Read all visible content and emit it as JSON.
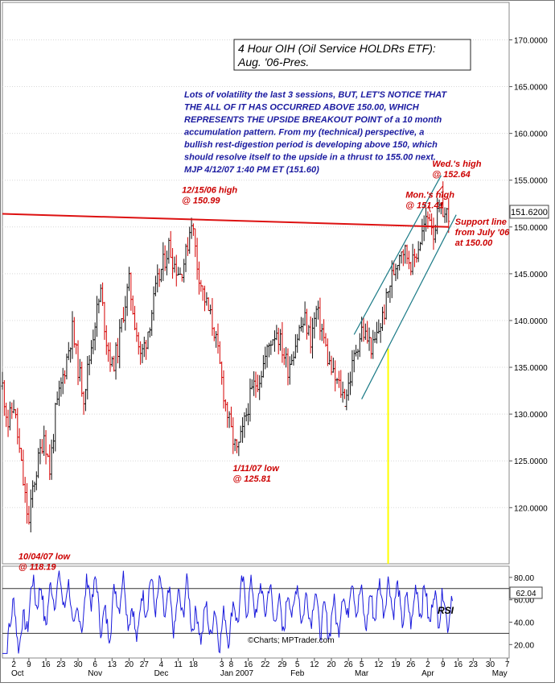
{
  "chart_data": [
    {
      "type": "candlestick",
      "title_line1": "4 Hour OIH (Oil Service HOLDRs ETF):",
      "title_line2": "Aug. '06-Pres.",
      "commentary": [
        "Lots of volatility the last 3 sessions, BUT, LET'S NOTICE THAT",
        "THE ALL OF IT HAS OCCURRED ABOVE 150.00, WHICH",
        "REPRESENTS THE UPSIDE BREAKOUT POINT of a 10 month",
        "accumulation pattern. From my (technical) perspective, a",
        "bullish rest-digestion period is developing above 150, which",
        "should resolve itself to the upside in a thrust to 155.00 next.",
        "MJP  4/12/07  1:40 PM ET (151.60)"
      ],
      "last_price_label": "151.6200",
      "last_price": 151.62,
      "ylim": [
        114,
        174
      ],
      "y_ticks": [
        {
          "value": 120,
          "label": "120.0000"
        },
        {
          "value": 125,
          "label": "125.0000"
        },
        {
          "value": 130,
          "label": "130.0000"
        },
        {
          "value": 135,
          "label": "135.0000"
        },
        {
          "value": 140,
          "label": "140.0000"
        },
        {
          "value": 145,
          "label": "145.0000"
        },
        {
          "value": 150,
          "label": "150.0000"
        },
        {
          "value": 155,
          "label": "155.0000"
        },
        {
          "value": 160,
          "label": "160.0000"
        },
        {
          "value": 165,
          "label": "165.0000"
        },
        {
          "value": 170,
          "label": "170.0000"
        }
      ],
      "price_path": [
        [
          0,
          133
        ],
        [
          3,
          129
        ],
        [
          6,
          131
        ],
        [
          9,
          126
        ],
        [
          12,
          121
        ],
        [
          14,
          118.19
        ],
        [
          16,
          122
        ],
        [
          19,
          125
        ],
        [
          22,
          128
        ],
        [
          25,
          124
        ],
        [
          28,
          130
        ],
        [
          31,
          133
        ],
        [
          34,
          136
        ],
        [
          37,
          139
        ],
        [
          40,
          135
        ],
        [
          43,
          132
        ],
        [
          46,
          136
        ],
        [
          49,
          140
        ],
        [
          52,
          143
        ],
        [
          55,
          138
        ],
        [
          58,
          135
        ],
        [
          61,
          137
        ],
        [
          64,
          141
        ],
        [
          67,
          144
        ],
        [
          70,
          140
        ],
        [
          73,
          136
        ],
        [
          76,
          138
        ],
        [
          79,
          141
        ],
        [
          82,
          144
        ],
        [
          85,
          146
        ],
        [
          88,
          148
        ],
        [
          91,
          146
        ],
        [
          94,
          145
        ],
        [
          97,
          147
        ],
        [
          100,
          150.99
        ],
        [
          103,
          146
        ],
        [
          106,
          143
        ],
        [
          109,
          141
        ],
        [
          112,
          139
        ],
        [
          115,
          135
        ],
        [
          118,
          131
        ],
        [
          121,
          128
        ],
        [
          124,
          125.81
        ],
        [
          127,
          128
        ],
        [
          130,
          131
        ],
        [
          133,
          133
        ],
        [
          136,
          134
        ],
        [
          139,
          136
        ],
        [
          142,
          138
        ],
        [
          145,
          139
        ],
        [
          148,
          137
        ],
        [
          151,
          135
        ],
        [
          154,
          137
        ],
        [
          157,
          139
        ],
        [
          160,
          140
        ],
        [
          163,
          138
        ],
        [
          166,
          141
        ],
        [
          169,
          139
        ],
        [
          172,
          136
        ],
        [
          175,
          134
        ],
        [
          178,
          133
        ],
        [
          181,
          131.6
        ],
        [
          184,
          134
        ],
        [
          187,
          137
        ],
        [
          190,
          139
        ],
        [
          193,
          138
        ],
        [
          196,
          137
        ],
        [
          199,
          139
        ],
        [
          202,
          141
        ],
        [
          205,
          144
        ],
        [
          208,
          146
        ],
        [
          211,
          148
        ],
        [
          214,
          147
        ],
        [
          217,
          146
        ],
        [
          220,
          148
        ],
        [
          223,
          150
        ],
        [
          226,
          151.41
        ],
        [
          228,
          149.5
        ],
        [
          230,
          151
        ],
        [
          232,
          152.64
        ],
        [
          234,
          151.2
        ],
        [
          236,
          151.62
        ]
      ],
      "flat_line": {
        "x0": 0,
        "y0": 151.4,
        "x1": 236,
        "y1": 150.0,
        "color": "#dd1111"
      },
      "channel_upper": {
        "x0": 186,
        "y0": 138.5,
        "x1": 232,
        "y1": 155.5
      },
      "channel_lower": {
        "x0": 190,
        "y0": 131.6,
        "x1": 240,
        "y1": 151.3
      },
      "channel_color": "#1a7a86",
      "marker_x": 204,
      "marker_color": "#ffff00",
      "annotations": [
        {
          "lines": [
            "10/04/07 low",
            "@ 118.19"
          ],
          "x": 14,
          "y": 118.19
        },
        {
          "lines": [
            "12/15/06 high",
            "@ 150.99"
          ],
          "x": 100,
          "y": 150.99
        },
        {
          "lines": [
            "1/11/07 low",
            "@ 125.81"
          ],
          "x": 124,
          "y": 125.81
        },
        {
          "lines": [
            "Mon.'s high",
            "@ 151.41"
          ],
          "x": 226,
          "y": 151.41
        },
        {
          "lines": [
            "Wed.'s high",
            "@ 152.64"
          ],
          "x": 232,
          "y": 152.64
        },
        {
          "lines": [
            "Support line",
            "from July '06",
            "at 150.00"
          ],
          "x": 236,
          "y": 150.0
        }
      ],
      "annotation_color": "#cc0000",
      "commentary_color": "#1a1aa0"
    },
    {
      "type": "line",
      "series_label": "RSI",
      "last_value_label": "62.04",
      "ylim": [
        8,
        90
      ],
      "y_ticks": [
        {
          "value": 20,
          "label": "20.00"
        },
        {
          "value": 40,
          "label": "40.00"
        },
        {
          "value": 60,
          "label": "60.00"
        },
        {
          "value": 80,
          "label": "80.00"
        }
      ],
      "ref_lines": [
        70,
        30
      ],
      "line_color": "#1a1adc",
      "credit": "©Charts; MPTrader.com",
      "x_ticks": [
        {
          "x": 6,
          "label": "2"
        },
        {
          "x": 14,
          "label": "9"
        },
        {
          "x": 23,
          "label": "16"
        },
        {
          "x": 31,
          "label": "23"
        },
        {
          "x": 40,
          "label": "30"
        },
        {
          "x": 49,
          "label": "6"
        },
        {
          "x": 58,
          "label": "13"
        },
        {
          "x": 67,
          "label": "20"
        },
        {
          "x": 75,
          "label": "27"
        },
        {
          "x": 84,
          "label": "4"
        },
        {
          "x": 93,
          "label": "11"
        },
        {
          "x": 101,
          "label": "18"
        },
        {
          "x": 116,
          "label": "3"
        },
        {
          "x": 121,
          "label": "8"
        },
        {
          "x": 130,
          "label": "16"
        },
        {
          "x": 139,
          "label": "22"
        },
        {
          "x": 148,
          "label": "29"
        },
        {
          "x": 156,
          "label": "5"
        },
        {
          "x": 165,
          "label": "12"
        },
        {
          "x": 174,
          "label": "20"
        },
        {
          "x": 183,
          "label": "26"
        },
        {
          "x": 190,
          "label": "5"
        },
        {
          "x": 199,
          "label": "12"
        },
        {
          "x": 208,
          "label": "19"
        },
        {
          "x": 216,
          "label": "26"
        },
        {
          "x": 225,
          "label": "2"
        },
        {
          "x": 233,
          "label": "9"
        },
        {
          "x": 241,
          "label": "16"
        },
        {
          "x": 249,
          "label": "23"
        },
        {
          "x": 258,
          "label": "30"
        },
        {
          "x": 267,
          "label": "7"
        }
      ],
      "month_labels": [
        {
          "x": 8,
          "label": "Oct"
        },
        {
          "x": 49,
          "label": "Nov"
        },
        {
          "x": 84,
          "label": "Dec"
        },
        {
          "x": 124,
          "label": "Jan 2007"
        },
        {
          "x": 156,
          "label": "Feb"
        },
        {
          "x": 190,
          "label": "Mar"
        },
        {
          "x": 225,
          "label": "Apr"
        },
        {
          "x": 263,
          "label": "May"
        }
      ]
    }
  ]
}
